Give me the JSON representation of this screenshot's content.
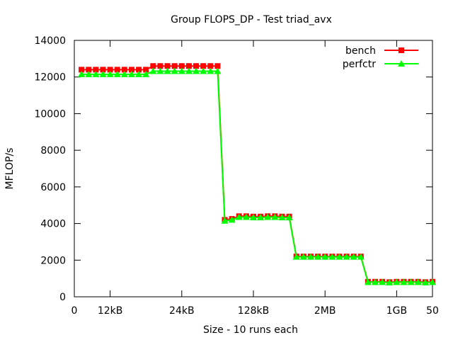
{
  "chart_data": {
    "type": "line",
    "title": "Group FLOPS_DP - Test triad_avx",
    "xlabel": "Size - 10 runs each",
    "ylabel": "MFLOP/s",
    "xlim": [
      0,
      50
    ],
    "ylim": [
      0,
      14000
    ],
    "yticks": [
      0,
      2000,
      4000,
      6000,
      8000,
      10000,
      12000,
      14000
    ],
    "xticks": [
      {
        "x": 0,
        "label": "0"
      },
      {
        "x": 5,
        "label": "12kB"
      },
      {
        "x": 15,
        "label": "24kB"
      },
      {
        "x": 25,
        "label": "128kB"
      },
      {
        "x": 35,
        "label": "2MB"
      },
      {
        "x": 45,
        "label": "1GB"
      },
      {
        "x": 50,
        "label": "50"
      }
    ],
    "grid": false,
    "legend_position": "top-right",
    "x": [
      1,
      2,
      3,
      4,
      5,
      6,
      7,
      8,
      9,
      10,
      11,
      12,
      13,
      14,
      15,
      16,
      17,
      18,
      19,
      20,
      21,
      22,
      23,
      24,
      25,
      26,
      27,
      28,
      29,
      30,
      31,
      32,
      33,
      34,
      35,
      36,
      37,
      38,
      39,
      40,
      41,
      42,
      43,
      44,
      45,
      46,
      47,
      48,
      49,
      50
    ],
    "series": [
      {
        "name": "bench",
        "color": "#ff0000",
        "marker": "square",
        "values": [
          12400,
          12400,
          12400,
          12400,
          12400,
          12400,
          12400,
          12400,
          12400,
          12400,
          12600,
          12600,
          12600,
          12600,
          12600,
          12600,
          12600,
          12600,
          12600,
          12600,
          4200,
          4250,
          4400,
          4400,
          4380,
          4380,
          4400,
          4400,
          4380,
          4380,
          2200,
          2200,
          2200,
          2200,
          2200,
          2200,
          2200,
          2200,
          2200,
          2200,
          820,
          820,
          820,
          800,
          820,
          820,
          820,
          820,
          800,
          820
        ]
      },
      {
        "name": "perfctr",
        "color": "#00ff00",
        "marker": "triangle",
        "values": [
          12150,
          12150,
          12150,
          12150,
          12150,
          12150,
          12150,
          12150,
          12150,
          12150,
          12320,
          12320,
          12320,
          12320,
          12320,
          12320,
          12320,
          12320,
          12320,
          12320,
          4150,
          4200,
          4350,
          4350,
          4330,
          4330,
          4350,
          4350,
          4330,
          4330,
          2180,
          2180,
          2180,
          2180,
          2180,
          2180,
          2180,
          2180,
          2180,
          2180,
          800,
          800,
          800,
          780,
          800,
          800,
          800,
          800,
          780,
          800
        ]
      }
    ]
  }
}
